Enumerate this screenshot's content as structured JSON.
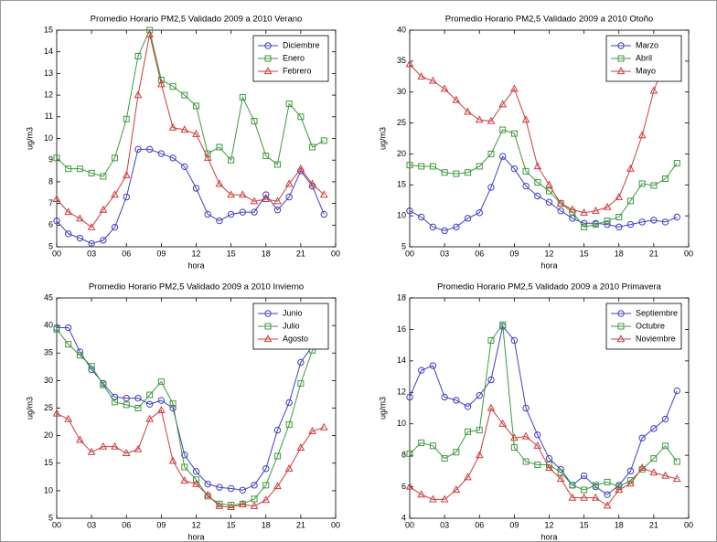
{
  "chart_data": [
    {
      "type": "line",
      "title": "Promedio Horario PM2,5 Validado 2009 a 2010 Verano",
      "xlabel": "hora",
      "ylabel": "ug/m3",
      "x": [
        0,
        1,
        2,
        3,
        4,
        5,
        6,
        7,
        8,
        9,
        10,
        11,
        12,
        13,
        14,
        15,
        16,
        17,
        18,
        19,
        20,
        21,
        22,
        23
      ],
      "xlim": [
        0,
        24
      ],
      "xticks": [
        {
          "value": 0,
          "label": "00"
        },
        {
          "value": 3,
          "label": "03"
        },
        {
          "value": 6,
          "label": "06"
        },
        {
          "value": 9,
          "label": "09"
        },
        12,
        15,
        18,
        21,
        {
          "value": 24,
          "label": "00"
        }
      ],
      "ylim": [
        5,
        15
      ],
      "yticks": [
        5,
        6,
        7,
        8,
        9,
        10,
        11,
        12,
        13,
        14,
        15
      ],
      "grid": false,
      "legend": "northeast",
      "series": [
        {
          "name": "Diciembre",
          "color": "#4040c0",
          "marker": "o",
          "values": [
            6.2,
            5.6,
            5.4,
            5.15,
            5.3,
            5.9,
            7.3,
            9.5,
            9.5,
            9.3,
            9.1,
            8.7,
            7.7,
            6.5,
            6.2,
            6.5,
            6.6,
            6.6,
            7.4,
            6.7,
            7.3,
            8.5,
            7.8,
            6.5
          ]
        },
        {
          "name": "Enero",
          "color": "#3d9a3d",
          "marker": "s",
          "values": [
            9.1,
            8.6,
            8.6,
            8.4,
            8.25,
            9.1,
            10.9,
            13.8,
            15.0,
            12.7,
            12.4,
            12.0,
            11.5,
            9.3,
            9.6,
            9.0,
            11.9,
            10.8,
            9.2,
            8.8,
            11.6,
            11.0,
            9.6,
            9.9
          ]
        },
        {
          "name": "Febrero",
          "color": "#cc3c3c",
          "marker": "^",
          "values": [
            7.2,
            6.6,
            6.3,
            5.9,
            6.7,
            7.4,
            8.3,
            12.0,
            14.8,
            12.5,
            10.5,
            10.4,
            10.2,
            9.1,
            7.9,
            7.4,
            7.4,
            7.1,
            7.2,
            7.1,
            7.9,
            8.6,
            7.9,
            7.4
          ]
        }
      ]
    },
    {
      "type": "line",
      "title": "Promedio Horario PM2,5 Validado 2009 a 2010 Otoño",
      "xlabel": "hora",
      "ylabel": "ug/m3",
      "x": [
        0,
        1,
        2,
        3,
        4,
        5,
        6,
        7,
        8,
        9,
        10,
        11,
        12,
        13,
        14,
        15,
        16,
        17,
        18,
        19,
        20,
        21,
        22,
        23
      ],
      "xlim": [
        0,
        24
      ],
      "xticks": [
        {
          "value": 0,
          "label": "00"
        },
        {
          "value": 3,
          "label": "03"
        },
        {
          "value": 6,
          "label": "06"
        },
        {
          "value": 9,
          "label": "09"
        },
        12,
        15,
        18,
        21,
        {
          "value": 24,
          "label": "00"
        }
      ],
      "ylim": [
        5,
        40
      ],
      "yticks": [
        5,
        10,
        15,
        20,
        25,
        30,
        35,
        40
      ],
      "grid": false,
      "legend": "northeast",
      "series": [
        {
          "name": "Marzo",
          "color": "#4040c0",
          "marker": "o",
          "values": [
            10.8,
            9.8,
            8.2,
            7.6,
            8.2,
            9.6,
            10.5,
            14.6,
            19.6,
            17.6,
            14.8,
            13.2,
            12.2,
            10.8,
            9.6,
            8.8,
            8.8,
            8.6,
            8.2,
            8.6,
            9.0,
            9.3,
            9.0,
            9.8
          ]
        },
        {
          "name": "Abril",
          "color": "#3d9a3d",
          "marker": "s",
          "values": [
            18.2,
            18.0,
            18.0,
            17.0,
            16.8,
            17.0,
            18.0,
            20.0,
            23.9,
            23.3,
            17.2,
            15.4,
            14.0,
            12.0,
            10.6,
            8.2,
            8.6,
            9.2,
            9.8,
            12.4,
            15.2,
            14.9,
            16.0,
            18.5
          ]
        },
        {
          "name": "Mayo",
          "color": "#cc3c3c",
          "marker": "^",
          "values": [
            34.5,
            32.5,
            31.8,
            30.5,
            28.7,
            26.8,
            25.5,
            25.3,
            28.0,
            30.5,
            25.5,
            18.0,
            15.0,
            12.0,
            11.0,
            10.5,
            10.8,
            11.4,
            13.0,
            17.6,
            23.0,
            30.2,
            35.2,
            36.6
          ]
        }
      ]
    },
    {
      "type": "line",
      "title": "Promedio Horario PM2,5 Validado 2009 a 2010 Invierno",
      "xlabel": "hora",
      "ylabel": "ug/m3",
      "x": [
        0,
        1,
        2,
        3,
        4,
        5,
        6,
        7,
        8,
        9,
        10,
        11,
        12,
        13,
        14,
        15,
        16,
        17,
        18,
        19,
        20,
        21,
        22,
        23
      ],
      "xlim": [
        0,
        24
      ],
      "xticks": [
        {
          "value": 0,
          "label": "00"
        },
        {
          "value": 3,
          "label": "03"
        },
        {
          "value": 6,
          "label": "06"
        },
        {
          "value": 9,
          "label": "09"
        },
        12,
        15,
        18,
        21,
        {
          "value": 24,
          "label": "00"
        }
      ],
      "ylim": [
        5,
        45
      ],
      "yticks": [
        5,
        10,
        15,
        20,
        25,
        30,
        35,
        40,
        45
      ],
      "grid": false,
      "legend": "northeast",
      "series": [
        {
          "name": "Junio",
          "color": "#4040c0",
          "marker": "o",
          "values": [
            39.6,
            39.6,
            35.2,
            32.0,
            29.5,
            27.0,
            26.8,
            26.8,
            25.7,
            26.4,
            25.0,
            16.5,
            13.5,
            11.2,
            10.6,
            10.4,
            10.1,
            11.0,
            14.0,
            21.0,
            26.0,
            33.3,
            36.3,
            40.7
          ]
        },
        {
          "name": "Julio",
          "color": "#3d9a3d",
          "marker": "s",
          "values": [
            39.3,
            36.6,
            34.6,
            32.6,
            29.2,
            26.1,
            25.6,
            25.0,
            27.4,
            29.8,
            25.8,
            14.3,
            12.0,
            9.0,
            7.6,
            7.4,
            7.6,
            8.5,
            11.0,
            16.3,
            22.0,
            29.5,
            35.5,
            38.6
          ]
        },
        {
          "name": "Agosto",
          "color": "#cc3c3c",
          "marker": "^",
          "values": [
            24.0,
            23.0,
            19.2,
            17.0,
            18.0,
            18.0,
            16.8,
            17.5,
            23.0,
            24.6,
            15.4,
            11.8,
            11.2,
            9.2,
            7.2,
            7.0,
            7.5,
            7.2,
            8.3,
            10.8,
            14.0,
            17.8,
            20.8,
            21.5
          ]
        }
      ]
    },
    {
      "type": "line",
      "title": "Promedio Horario PM2,5 Validado 2009 a 2010 Primavera",
      "xlabel": "hora",
      "ylabel": "ug/m3",
      "x": [
        0,
        1,
        2,
        3,
        4,
        5,
        6,
        7,
        8,
        9,
        10,
        11,
        12,
        13,
        14,
        15,
        16,
        17,
        18,
        19,
        20,
        21,
        22,
        23
      ],
      "xlim": [
        0,
        24
      ],
      "xticks": [
        {
          "value": 0,
          "label": "00"
        },
        {
          "value": 3,
          "label": "03"
        },
        {
          "value": 6,
          "label": "06"
        },
        {
          "value": 9,
          "label": "09"
        },
        12,
        15,
        18,
        21,
        {
          "value": 24,
          "label": "00"
        }
      ],
      "ylim": [
        4,
        18
      ],
      "yticks": [
        4,
        6,
        8,
        10,
        12,
        14,
        16,
        18
      ],
      "grid": false,
      "legend": "northeast",
      "series": [
        {
          "name": "Septiembre",
          "color": "#4040c0",
          "marker": "o",
          "values": [
            11.7,
            13.4,
            13.7,
            11.7,
            11.5,
            11.1,
            11.8,
            12.8,
            16.2,
            15.3,
            11.0,
            9.3,
            7.8,
            7.1,
            6.1,
            6.7,
            6.0,
            5.5,
            6.1,
            7.0,
            9.1,
            9.7,
            10.3,
            12.1
          ]
        },
        {
          "name": "Octubre",
          "color": "#3d9a3d",
          "marker": "s",
          "values": [
            8.1,
            8.8,
            8.6,
            7.8,
            8.2,
            9.5,
            9.6,
            15.3,
            16.3,
            8.5,
            7.6,
            7.4,
            7.4,
            6.9,
            6.1,
            5.8,
            6.1,
            6.3,
            6.0,
            6.4,
            7.1,
            7.8,
            8.6,
            7.6
          ]
        },
        {
          "name": "Noviembre",
          "color": "#cc3c3c",
          "marker": "^",
          "values": [
            6.0,
            5.5,
            5.2,
            5.2,
            5.8,
            6.6,
            8.0,
            11.0,
            10.0,
            9.1,
            9.2,
            8.6,
            7.2,
            6.5,
            5.3,
            5.3,
            5.3,
            4.8,
            5.8,
            6.2,
            7.2,
            6.9,
            6.7,
            6.5
          ]
        }
      ]
    }
  ]
}
